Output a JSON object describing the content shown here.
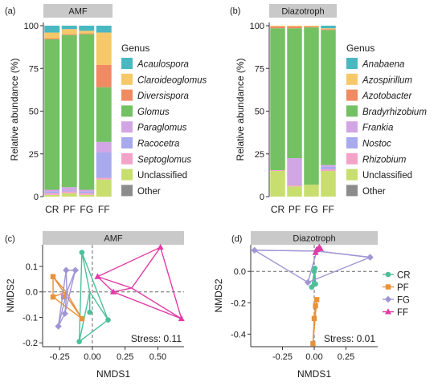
{
  "colors": {
    "Acaulospora": "#4ab8c1",
    "Claroideoglomus": "#f6c86a",
    "Diversispora": "#f08a62",
    "Glomus": "#73c163",
    "Paraglomus": "#d2a6e4",
    "Racocetra": "#a9a9ee",
    "Septoglomus": "#f4a3c8",
    "Anabaena": "#4ab8c1",
    "Azospirillum": "#f6c86a",
    "Azotobacter": "#f08a62",
    "Bradyrhizobium": "#73c163",
    "Frankia": "#d2a6e4",
    "Nostoc": "#a9a9ee",
    "Rhizobium": "#f4a3c8",
    "Unclassified": "#c8de6e",
    "Other": "#8c8c8c",
    "CR": "#4dbf9a",
    "PF": "#e8923a",
    "FG": "#9f96d4",
    "FF": "#e23aa6"
  },
  "chart_data": [
    {
      "id": "a",
      "type": "bar",
      "stacked": true,
      "tag": "(a)",
      "strip": "AMF",
      "ylabel": "Relative abundance (%)",
      "xlabel": "",
      "ylim": [
        0,
        100
      ],
      "yticks": [
        0,
        25,
        50,
        75,
        100
      ],
      "categories": [
        "CR",
        "PF",
        "FG",
        "FF"
      ],
      "legend_title": "Genus",
      "legend_position": "right",
      "series": [
        {
          "name": "Unclassified",
          "italic": false,
          "values": [
            1,
            2,
            1,
            10
          ]
        },
        {
          "name": "Septoglomus",
          "italic": true,
          "values": [
            1,
            1,
            1,
            1
          ]
        },
        {
          "name": "Racocetra",
          "italic": true,
          "values": [
            1,
            0.5,
            1,
            15
          ]
        },
        {
          "name": "Paraglomus",
          "italic": true,
          "values": [
            1,
            2,
            1,
            6
          ]
        },
        {
          "name": "Glomus",
          "italic": true,
          "values": [
            88,
            89,
            91,
            32
          ]
        },
        {
          "name": "Diversispora",
          "italic": true,
          "values": [
            0.5,
            0.5,
            0.5,
            13
          ]
        },
        {
          "name": "Claroideoglomus",
          "italic": true,
          "values": [
            3.5,
            3,
            1.5,
            19
          ]
        },
        {
          "name": "Acaulospora",
          "italic": true,
          "values": [
            4,
            2,
            3,
            4
          ]
        },
        {
          "name": "Other",
          "italic": false,
          "values": [
            0,
            0,
            0,
            0
          ]
        }
      ],
      "legend_order": [
        "Acaulospora",
        "Claroideoglomus",
        "Diversispora",
        "Glomus",
        "Paraglomus",
        "Racocetra",
        "Septoglomus",
        "Unclassified",
        "Other"
      ]
    },
    {
      "id": "b",
      "type": "bar",
      "stacked": true,
      "tag": "(b)",
      "strip": "Diazotroph",
      "ylabel": "Relative abundance (%)",
      "xlabel": "",
      "ylim": [
        0,
        100
      ],
      "yticks": [
        0,
        25,
        50,
        75,
        100
      ],
      "categories": [
        "CR",
        "PF",
        "FG",
        "FF"
      ],
      "legend_title": "Genus",
      "legend_position": "right",
      "series": [
        {
          "name": "Unclassified",
          "italic": false,
          "values": [
            15,
            6,
            7,
            15
          ]
        },
        {
          "name": "Rhizobium",
          "italic": true,
          "values": [
            0.5,
            1,
            0,
            1
          ]
        },
        {
          "name": "Nostoc",
          "italic": true,
          "values": [
            0,
            0.5,
            0,
            1.5
          ]
        },
        {
          "name": "Frankia",
          "italic": true,
          "values": [
            0,
            15,
            0,
            1
          ]
        },
        {
          "name": "Bradyrhizobium",
          "italic": true,
          "values": [
            83,
            76,
            92,
            79
          ]
        },
        {
          "name": "Azotobacter",
          "italic": true,
          "values": [
            1,
            1,
            0.5,
            0.5
          ]
        },
        {
          "name": "Azospirillum",
          "italic": true,
          "values": [
            0.5,
            0.5,
            0.5,
            0.5
          ]
        },
        {
          "name": "Anabaena",
          "italic": true,
          "values": [
            0,
            0,
            0,
            1.5
          ]
        },
        {
          "name": "Other",
          "italic": false,
          "values": [
            0,
            0,
            0,
            0
          ]
        }
      ],
      "legend_order": [
        "Anabaena",
        "Azospirillum",
        "Azotobacter",
        "Bradyrhizobium",
        "Frankia",
        "Nostoc",
        "Rhizobium",
        "Unclassified",
        "Other"
      ]
    },
    {
      "id": "c",
      "type": "scatter",
      "tag": "(c)",
      "strip": "AMF",
      "xlabel": "NMDS1",
      "ylabel": "NMDS2",
      "xlim": [
        -0.38,
        0.7
      ],
      "ylim": [
        -0.215,
        0.185
      ],
      "xticks": [
        -0.25,
        0.0,
        0.25,
        0.5
      ],
      "xtick_labels": [
        "-0.25",
        "0.00",
        "0.25",
        "0.50"
      ],
      "yticks": [
        -0.2,
        -0.1,
        0.0,
        0.1
      ],
      "ytick_labels": [
        "-0.2",
        "-0.1",
        "0.0",
        "0.1"
      ],
      "annotation": "Stress: 0.11",
      "groups": [
        {
          "name": "CR",
          "shape": "circle",
          "points": [
            [
              -0.02,
              -0.08
            ],
            [
              -0.08,
              0.155
            ],
            [
              -0.1,
              -0.195
            ],
            [
              0.12,
              -0.11
            ]
          ],
          "spider_center": [
            -0.02,
            0.0
          ]
        },
        {
          "name": "PF",
          "shape": "square",
          "points": [
            [
              -0.3,
              0.06
            ],
            [
              -0.3,
              -0.02
            ],
            [
              -0.22,
              -0.02
            ],
            [
              -0.08,
              -0.105
            ]
          ],
          "spider_center": [
            -0.2,
            0.0
          ]
        },
        {
          "name": "FG",
          "shape": "diamond",
          "points": [
            [
              -0.2,
              0.085
            ],
            [
              -0.26,
              -0.135
            ],
            [
              -0.13,
              0.085
            ],
            [
              -0.21,
              -0.085
            ]
          ],
          "spider_center": [
            -0.195,
            0.0
          ]
        },
        {
          "name": "FF",
          "shape": "triangle",
          "points": [
            [
              0.52,
              0.175
            ],
            [
              0.68,
              -0.105
            ],
            [
              0.04,
              0.06
            ],
            [
              0.16,
              0.0
            ]
          ],
          "spider_center": [
            0.3,
            0.015
          ]
        }
      ]
    },
    {
      "id": "d",
      "type": "scatter",
      "tag": "(d)",
      "strip": "Diazotroph",
      "xlabel": "NMDS1",
      "ylabel": "NMDS2",
      "xlim": [
        -0.5,
        0.5
      ],
      "ylim": [
        -0.48,
        0.17
      ],
      "xticks": [
        -0.25,
        0.0,
        0.25
      ],
      "xtick_labels": [
        "-0.25",
        "0.00",
        "0.25"
      ],
      "yticks": [
        -0.4,
        -0.2,
        0.0
      ],
      "ytick_labels": [
        "-0.4",
        "-0.2",
        "0.0"
      ],
      "annotation": "Stress: 0.01",
      "legend_position": "right",
      "groups": [
        {
          "name": "CR",
          "shape": "circle",
          "points": [
            [
              0.0,
              0.0
            ],
            [
              0.01,
              -0.08
            ],
            [
              -0.02,
              -0.1
            ],
            [
              0.005,
              0.02
            ]
          ],
          "spider_center": [
            0.0,
            -0.03
          ]
        },
        {
          "name": "PF",
          "shape": "square",
          "points": [
            [
              0.0,
              -0.3
            ],
            [
              0.02,
              -0.18
            ],
            [
              -0.01,
              -0.46
            ],
            [
              0.01,
              -0.22
            ]
          ],
          "spider_center": [
            0.01,
            -0.22
          ]
        },
        {
          "name": "FG",
          "shape": "diamond",
          "points": [
            [
              -0.47,
              0.135
            ],
            [
              0.44,
              0.09
            ],
            [
              -0.05,
              -0.07
            ],
            [
              0.02,
              0.13
            ]
          ],
          "spider_center": [
            0.02,
            0.13
          ]
        },
        {
          "name": "FF",
          "shape": "triangle",
          "points": [
            [
              0.02,
              0.14
            ],
            [
              0.04,
              0.155
            ],
            [
              0.01,
              0.12
            ],
            [
              0.05,
              0.145
            ]
          ],
          "spider_center": [
            0.03,
            0.14
          ]
        }
      ]
    }
  ]
}
